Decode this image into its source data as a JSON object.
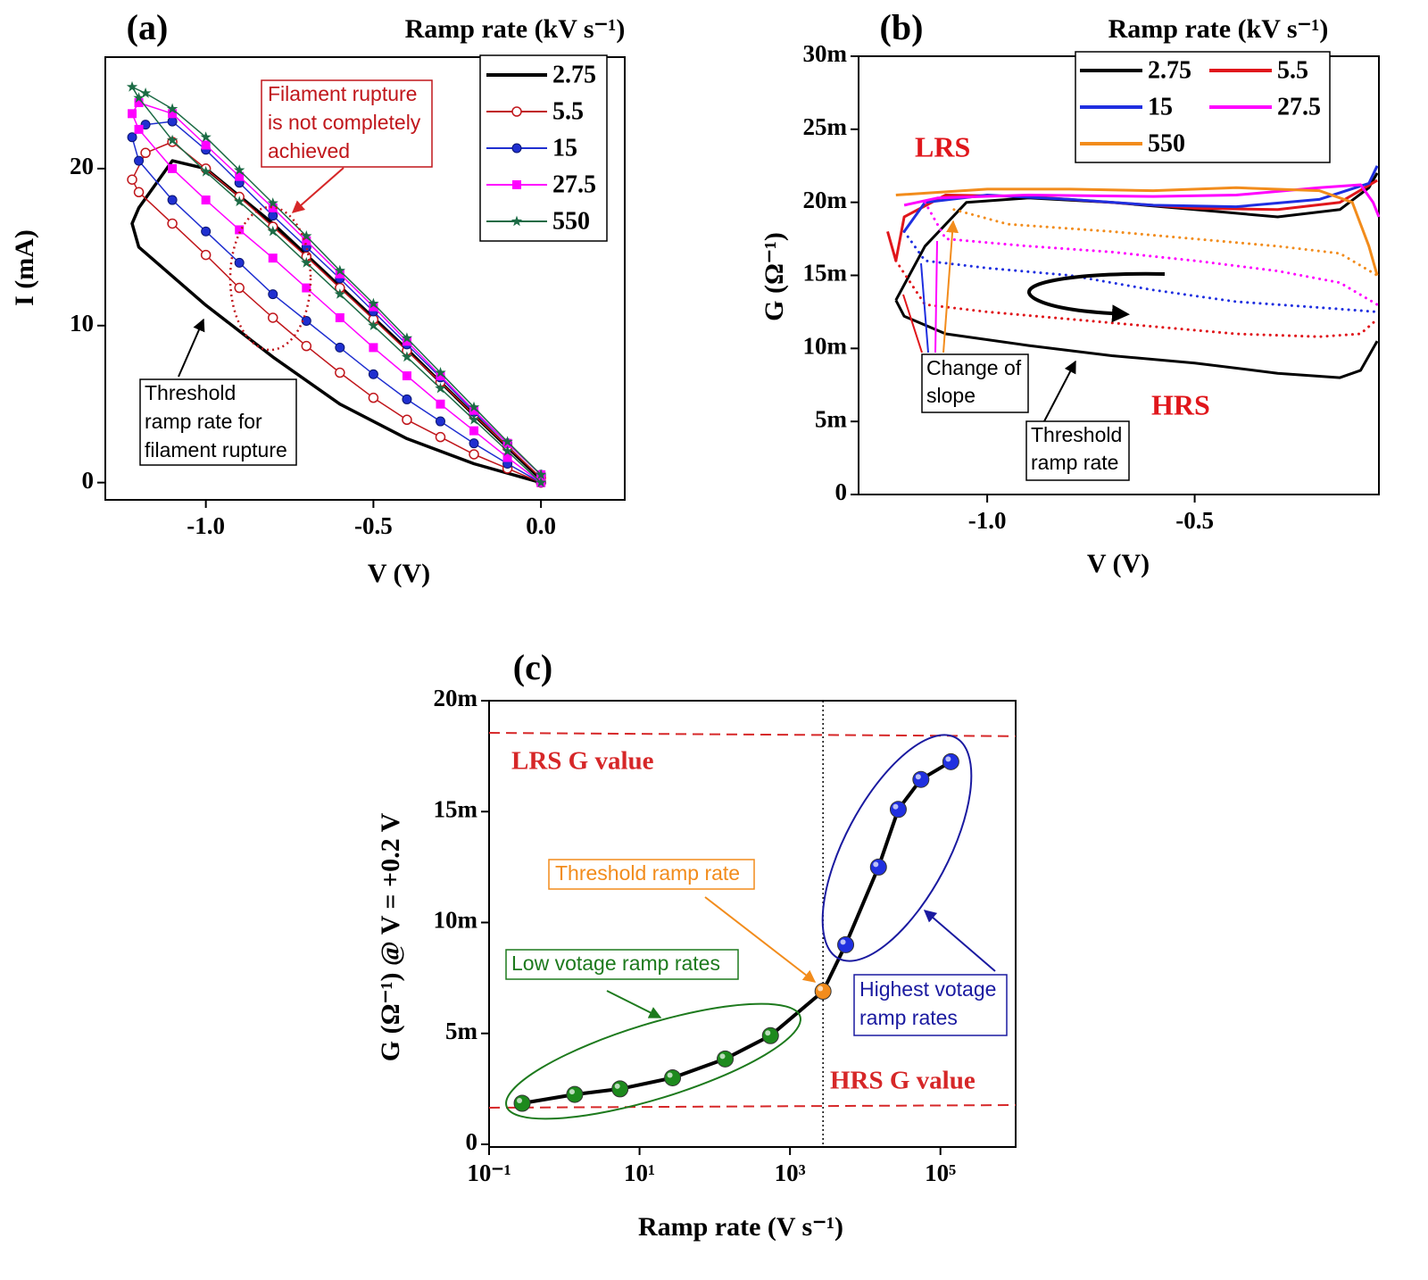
{
  "chart_data": [
    {
      "type": "line",
      "panel": "(a)",
      "legend_title": "Ramp rate (kV s⁻¹)",
      "xlabel": "V (V)",
      "ylabel": "I (mA)",
      "xlim": [
        -1.3,
        0.25
      ],
      "ylim": [
        -1.1,
        27.1
      ],
      "xticks": [
        {
          "value": -1,
          "label": "-1.0"
        },
        {
          "value": -0.5,
          "label": "-0.5"
        },
        {
          "value": 0,
          "label": "0.0"
        }
      ],
      "yticks": [
        0,
        10,
        20
      ],
      "series": [
        {
          "name": "2.75",
          "color": "#000000",
          "marker": "none",
          "x": [
            0,
            -0.2,
            -0.4,
            -0.6,
            -0.8,
            -1.0,
            -1.2,
            -1.22,
            -1.2,
            -1.1,
            -1.0,
            -0.8,
            -0.6,
            -0.4,
            -0.2,
            0
          ],
          "values": [
            0,
            1.2,
            2.8,
            5,
            8,
            11.3,
            15,
            16.5,
            17.5,
            20.5,
            20,
            16.5,
            12.5,
            8.5,
            4.3,
            0.2
          ]
        },
        {
          "name": "5.5",
          "color": "#c0161b",
          "marker": "circle-open",
          "x": [
            0,
            -0.1,
            -0.2,
            -0.3,
            -0.4,
            -0.5,
            -0.6,
            -0.7,
            -0.8,
            -0.9,
            -1.0,
            -1.1,
            -1.2,
            -1.22,
            -1.18,
            -1.1,
            -1.0,
            -0.9,
            -0.8,
            -0.7,
            -0.6,
            -0.5,
            -0.4,
            -0.3,
            -0.2,
            -0.1,
            0
          ],
          "values": [
            0,
            0.9,
            1.8,
            2.9,
            4.0,
            5.4,
            7.0,
            8.7,
            10.5,
            12.4,
            14.5,
            16.5,
            18.5,
            19.3,
            21,
            21.7,
            20,
            18.2,
            16.3,
            14.4,
            12.4,
            10.4,
            8.4,
            6.4,
            4.3,
            2.3,
            0.3
          ]
        },
        {
          "name": "15",
          "color": "#1f2fd0",
          "marker": "circle",
          "x": [
            0,
            -0.1,
            -0.2,
            -0.3,
            -0.4,
            -0.5,
            -0.6,
            -0.7,
            -0.8,
            -0.9,
            -1.0,
            -1.1,
            -1.2,
            -1.22,
            -1.18,
            -1.1,
            -1.0,
            -0.9,
            -0.8,
            -0.7,
            -0.6,
            -0.5,
            -0.4,
            -0.3,
            -0.2,
            -0.1,
            0
          ],
          "values": [
            0,
            1.2,
            2.5,
            3.9,
            5.3,
            6.9,
            8.6,
            10.3,
            12,
            14,
            16,
            18,
            20.5,
            22,
            22.8,
            23,
            21.2,
            19.1,
            17,
            15,
            13,
            10.9,
            8.8,
            6.7,
            4.5,
            2.5,
            0.5
          ]
        },
        {
          "name": "27.5",
          "color": "#ff00ff",
          "marker": "square",
          "x": [
            0,
            -0.1,
            -0.2,
            -0.3,
            -0.4,
            -0.5,
            -0.6,
            -0.7,
            -0.8,
            -0.9,
            -1.0,
            -1.1,
            -1.2,
            -1.22,
            -1.2,
            -1.1,
            -1.0,
            -0.9,
            -0.8,
            -0.7,
            -0.6,
            -0.5,
            -0.4,
            -0.3,
            -0.2,
            -0.1,
            0
          ],
          "values": [
            0,
            1.6,
            3.3,
            5,
            6.8,
            8.6,
            10.5,
            12.4,
            14.3,
            16.1,
            18,
            20,
            22.5,
            23.5,
            24.2,
            23.5,
            21.5,
            19.5,
            17.5,
            15.4,
            13.3,
            11.2,
            9,
            6.8,
            4.6,
            2.5,
            0.5
          ]
        },
        {
          "name": "550",
          "color": "#1c6b45",
          "marker": "star",
          "x": [
            0,
            -0.1,
            -0.2,
            -0.3,
            -0.4,
            -0.5,
            -0.6,
            -0.7,
            -0.8,
            -0.9,
            -1.0,
            -1.1,
            -1.2,
            -1.22,
            -1.18,
            -1.1,
            -1.0,
            -0.9,
            -0.8,
            -0.7,
            -0.6,
            -0.5,
            -0.4,
            -0.3,
            -0.2,
            -0.1,
            0
          ],
          "values": [
            0,
            2,
            4,
            6,
            8,
            10,
            12,
            14,
            16,
            17.9,
            19.8,
            21.8,
            24.5,
            25.2,
            24.8,
            23.8,
            22,
            19.9,
            17.8,
            15.7,
            13.5,
            11.4,
            9.2,
            7,
            4.8,
            2.6,
            0.5
          ]
        }
      ],
      "annotations": [
        {
          "text": [
            "Filament rupture",
            "is not completely",
            "achieved"
          ],
          "color": "#c0161b"
        },
        {
          "text": [
            "Threshold",
            "ramp rate for",
            "filament rupture"
          ],
          "color": "#000000"
        }
      ]
    },
    {
      "type": "line",
      "panel": "(b)",
      "legend_title": "Ramp rate (kV s⁻¹)",
      "xlabel": "V (V)",
      "ylabel": "G (Ω⁻¹)",
      "xlim": [
        -1.31,
        -0.056
      ],
      "ylim": [
        0,
        0.03
      ],
      "xticks": [
        {
          "value": -1,
          "label": "-1.0"
        },
        {
          "value": -0.5,
          "label": "-0.5"
        }
      ],
      "yticks": [
        0,
        {
          "value": 0.005,
          "label": "5m"
        },
        {
          "value": 0.01,
          "label": "10m"
        },
        {
          "value": 0.015,
          "label": "15m"
        },
        {
          "value": 0.02,
          "label": "20m"
        },
        {
          "value": 0.025,
          "label": "25m"
        },
        {
          "value": 0.03,
          "label": "30m"
        }
      ],
      "series": [
        {
          "name": "2.75",
          "color": "#000000",
          "branches": [
            {
              "style": "solid",
              "x": [
                -1.22,
                -1.15,
                -1.05,
                -0.9,
                -0.7,
                -0.5,
                -0.3,
                -0.15,
                -0.08,
                -0.06
              ],
              "values": [
                0.0133,
                0.017,
                0.02,
                0.0203,
                0.02,
                0.0195,
                0.019,
                0.0195,
                0.021,
                0.022
              ]
            },
            {
              "style": "solid",
              "x": [
                -1.22,
                -1.2,
                -1.1,
                -0.9,
                -0.7,
                -0.5,
                -0.3,
                -0.15,
                -0.1,
                -0.06
              ],
              "values": [
                0.0133,
                0.0122,
                0.011,
                0.0102,
                0.0095,
                0.009,
                0.0083,
                0.008,
                0.0085,
                0.0105
              ]
            }
          ]
        },
        {
          "name": "5.5",
          "color": "#e0161b",
          "branches": [
            {
              "style": "solid",
              "x": [
                -1.24,
                -1.22,
                -1.2,
                -1.1,
                -0.9,
                -0.7,
                -0.5,
                -0.3,
                -0.15,
                -0.06
              ],
              "values": [
                0.018,
                0.016,
                0.019,
                0.0205,
                0.0204,
                0.02,
                0.0196,
                0.0195,
                0.02,
                0.0215
              ]
            },
            {
              "style": "dotted",
              "x": [
                -1.22,
                -1.15,
                -1.0,
                -0.8,
                -0.6,
                -0.4,
                -0.2,
                -0.1,
                -0.06
              ],
              "values": [
                0.016,
                0.013,
                0.0125,
                0.012,
                0.0115,
                0.011,
                0.0108,
                0.011,
                0.012
              ]
            }
          ]
        },
        {
          "name": "15",
          "color": "#1f2fe0",
          "branches": [
            {
              "style": "solid",
              "x": [
                -1.2,
                -1.15,
                -1.0,
                -0.8,
                -0.6,
                -0.4,
                -0.2,
                -0.08,
                -0.06
              ],
              "values": [
                0.018,
                0.02,
                0.0205,
                0.0202,
                0.0198,
                0.0197,
                0.0202,
                0.0213,
                0.0225
              ]
            },
            {
              "style": "dotted",
              "x": [
                -1.2,
                -1.15,
                -1.0,
                -0.8,
                -0.6,
                -0.4,
                -0.2,
                -0.06
              ],
              "values": [
                0.018,
                0.016,
                0.0155,
                0.015,
                0.014,
                0.0132,
                0.0128,
                0.0125
              ]
            }
          ]
        },
        {
          "name": "27.5",
          "color": "#ff00ff",
          "branches": [
            {
              "style": "solid",
              "x": [
                -1.2,
                -1.12,
                -0.9,
                -0.6,
                -0.4,
                -0.2,
                -0.1,
                -0.07,
                -0.056
              ],
              "values": [
                0.0198,
                0.0203,
                0.0205,
                0.0204,
                0.0205,
                0.021,
                0.0212,
                0.02,
                0.019
              ]
            },
            {
              "style": "dotted",
              "x": [
                -1.15,
                -1.1,
                -0.9,
                -0.7,
                -0.5,
                -0.3,
                -0.15,
                -0.06
              ],
              "values": [
                0.02,
                0.0175,
                0.017,
                0.0166,
                0.016,
                0.0153,
                0.0145,
                0.013
              ]
            }
          ]
        },
        {
          "name": "550",
          "color": "#f28c1c",
          "branches": [
            {
              "style": "solid",
              "x": [
                -1.22,
                -1.0,
                -0.8,
                -0.6,
                -0.4,
                -0.2,
                -0.12,
                -0.08,
                -0.06
              ],
              "values": [
                0.0205,
                0.0209,
                0.0209,
                0.0208,
                0.021,
                0.0208,
                0.02,
                0.017,
                0.015
              ]
            },
            {
              "style": "dotted",
              "x": [
                -1.08,
                -0.95,
                -0.7,
                -0.5,
                -0.3,
                -0.15,
                -0.06
              ],
              "values": [
                0.0195,
                0.0185,
                0.018,
                0.0175,
                0.017,
                0.0165,
                0.015
              ]
            }
          ]
        }
      ],
      "annotations": [
        {
          "text": [
            "LRS"
          ],
          "color": "#e0161b"
        },
        {
          "text": [
            "HRS"
          ],
          "color": "#e0161b"
        },
        {
          "text": [
            "Change of",
            "slope"
          ],
          "color": "#000000"
        },
        {
          "text": [
            "Threshold",
            "ramp rate"
          ],
          "color": "#000000"
        }
      ]
    },
    {
      "type": "line",
      "panel": "(c)",
      "xlabel": "Ramp rate (V s⁻¹)",
      "ylabel": "G (Ω⁻¹)  @  V = +0.2 V",
      "xscale": "log",
      "xlim": [
        0.1,
        1000000
      ],
      "ylim": [
        0,
        0.02
      ],
      "xticks": [
        {
          "value": 0.1,
          "label": "10⁻¹"
        },
        {
          "value": 10,
          "label": "10¹"
        },
        {
          "value": 1000,
          "label": "10³"
        },
        {
          "value": 100000,
          "label": "10⁵"
        }
      ],
      "yticks": [
        0,
        {
          "value": 0.005,
          "label": "5m"
        },
        {
          "value": 0.01,
          "label": "10m"
        },
        {
          "value": 0.015,
          "label": "15m"
        },
        {
          "value": 0.02,
          "label": "20m"
        }
      ],
      "series": [
        {
          "color": "#000000",
          "marker": "ball",
          "x": [
            0.275,
            1.375,
            5.5,
            27.5,
            137.5,
            550,
            2750,
            5500,
            15000,
            27500,
            55000,
            137500
          ],
          "values": [
            0.00185,
            0.00225,
            0.0025,
            0.003,
            0.00385,
            0.0049,
            0.0069,
            0.009,
            0.0125,
            0.0151,
            0.01645,
            0.01725
          ],
          "colors": [
            "#1d8a1d",
            "#1d8a1d",
            "#1d8a1d",
            "#1d8a1d",
            "#1d8a1d",
            "#1d8a1d",
            "#f28c1c",
            "#2030e0",
            "#2030e0",
            "#2030e0",
            "#2030e0",
            "#2030e0"
          ]
        }
      ],
      "reference_lines": [
        {
          "values": [
            0.01855,
            0.0184
          ],
          "color": "#d62728"
        },
        {
          "values": [
            0.00165,
            0.00177
          ],
          "color": "#d62728"
        }
      ],
      "annotations": [
        {
          "text": [
            "LRS G value"
          ],
          "color": "#d62728"
        },
        {
          "text": [
            "HRS G value"
          ],
          "color": "#d62728"
        },
        {
          "text": [
            "Threshold ramp rate"
          ],
          "color": "#f28c1c"
        },
        {
          "text": [
            "Low votage ramp rates"
          ],
          "color": "#1d7a1d"
        },
        {
          "text": [
            "Highest votage",
            "ramp rates"
          ],
          "color": "#1a1aa0"
        }
      ]
    }
  ]
}
